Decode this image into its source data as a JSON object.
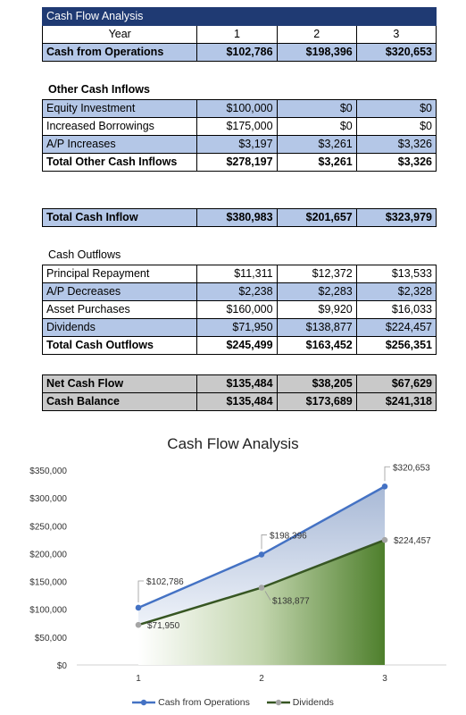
{
  "title": "Cash Flow Analysis",
  "header": {
    "year_label": "Year",
    "years": [
      "1",
      "2",
      "3"
    ]
  },
  "operations": {
    "label": "Cash from Operations",
    "values": [
      "$102,786",
      "$198,396",
      "$320,653"
    ]
  },
  "other_inflows": {
    "heading": "Other Cash Inflows",
    "rows": [
      {
        "label": "Equity Investment",
        "values": [
          "$100,000",
          "$0",
          "$0"
        ]
      },
      {
        "label": "Increased Borrowings",
        "values": [
          "$175,000",
          "$0",
          "$0"
        ]
      },
      {
        "label": "A/P Increases",
        "values": [
          "$3,197",
          "$3,261",
          "$3,326"
        ]
      }
    ],
    "total": {
      "label": "Total Other Cash Inflows",
      "values": [
        "$278,197",
        "$3,261",
        "$3,326"
      ]
    }
  },
  "total_inflow": {
    "label": "Total Cash Inflow",
    "values": [
      "$380,983",
      "$201,657",
      "$323,979"
    ]
  },
  "outflows": {
    "heading": "Cash Outflows",
    "rows": [
      {
        "label": "Principal Repayment",
        "values": [
          "$11,311",
          "$12,372",
          "$13,533"
        ]
      },
      {
        "label": "A/P Decreases",
        "values": [
          "$2,238",
          "$2,283",
          "$2,328"
        ]
      },
      {
        "label": "Asset Purchases",
        "values": [
          "$160,000",
          "$9,920",
          "$16,033"
        ]
      },
      {
        "label": "Dividends",
        "values": [
          "$71,950",
          "$138,877",
          "$224,457"
        ]
      }
    ],
    "total": {
      "label": "Total Cash Outflows",
      "values": [
        "$245,499",
        "$163,452",
        "$256,351"
      ]
    }
  },
  "net": {
    "rows": [
      {
        "label": "Net Cash Flow",
        "values": [
          "$135,484",
          "$38,205",
          "$67,629"
        ]
      },
      {
        "label": "Cash Balance",
        "values": [
          "$135,484",
          "$173,689",
          "$241,318"
        ]
      }
    ]
  },
  "chart_data": {
    "type": "area",
    "title": "Cash Flow Analysis",
    "categories": [
      "1",
      "2",
      "3"
    ],
    "ylim": [
      0,
      350000
    ],
    "y_ticks": [
      "$0",
      "$50,000",
      "$100,000",
      "$150,000",
      "$200,000",
      "$250,000",
      "$300,000",
      "$350,000"
    ],
    "legend_position": "bottom",
    "series": [
      {
        "name": "Cash from Operations",
        "values": [
          102786,
          198396,
          320653
        ],
        "labels": [
          "$102,786",
          "$198,396",
          "$320,653"
        ],
        "color": "#4472c4"
      },
      {
        "name": "Dividends",
        "values": [
          71950,
          138877,
          224457
        ],
        "labels": [
          "$71,950",
          "$138,877",
          "$224,457"
        ],
        "color": "#375623"
      }
    ]
  },
  "colors": {
    "title_bar": "#1f3a73",
    "blue_row": "#b4c7e7",
    "gray_row": "#c9c9c9"
  }
}
